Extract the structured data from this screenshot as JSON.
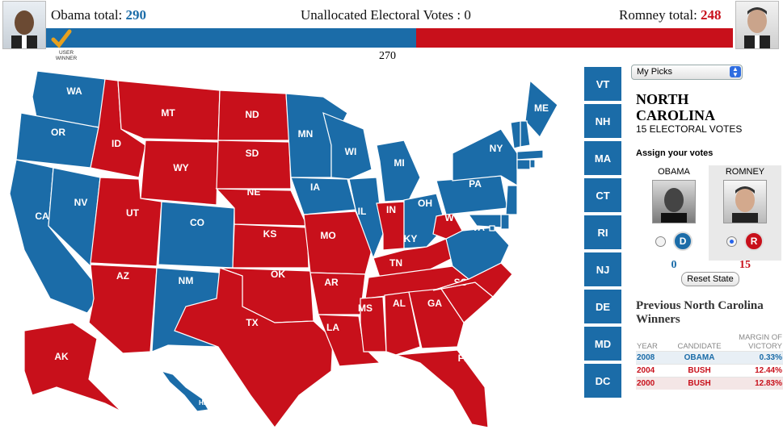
{
  "header": {
    "obama_label": "Obama total:",
    "obama_total": "290",
    "unallocated_label": "Unallocated Electoral Votes :",
    "unallocated_value": "0",
    "romney_label": "Romney total:",
    "romney_total": "248",
    "threshold": "270",
    "user_winner": "USER WINNER",
    "obama_share": 0.539
  },
  "colors": {
    "dem": "#1b6ca8",
    "rep": "#c8101b"
  },
  "map": {
    "states": {
      "WA": "b",
      "OR": "b",
      "CA": "b",
      "NV": "b",
      "ID": "r",
      "MT": "r",
      "WY": "r",
      "UT": "r",
      "AZ": "r",
      "CO": "b",
      "NM": "b",
      "ND": "r",
      "SD": "r",
      "NE": "r",
      "KS": "r",
      "OK": "r",
      "TX": "r",
      "MN": "b",
      "IA": "b",
      "MO": "r",
      "AR": "r",
      "LA": "r",
      "WI": "b",
      "IL": "b",
      "MI": "b",
      "IN": "r",
      "OH": "b",
      "KY": "r",
      "TN": "r",
      "MS": "r",
      "AL": "r",
      "GA": "r",
      "FL": "r",
      "SC": "r",
      "NC": "r",
      "VA": "b",
      "WV": "r",
      "PA": "b",
      "NY": "b",
      "ME": "b",
      "NH": "b",
      "VT": "b",
      "MA": "b",
      "RI": "b",
      "CT": "b",
      "NJ": "b",
      "DE": "b",
      "MD": "b",
      "DC": "b",
      "AK": "r",
      "HI": "b"
    },
    "small_states": [
      "VT",
      "NH",
      "MA",
      "CT",
      "RI",
      "NJ",
      "DE",
      "MD",
      "DC"
    ]
  },
  "panel": {
    "dropdown": "My Picks",
    "state_name_line1": "NORTH",
    "state_name_line2": "CAROLINA",
    "electoral_votes": "15 ELECTORAL VOTES",
    "assign_label": "Assign your votes",
    "obama": {
      "name": "OBAMA",
      "votes": "0",
      "badge": "D"
    },
    "romney": {
      "name": "ROMNEY",
      "votes": "15",
      "badge": "R"
    },
    "reset_label": "Reset State",
    "prev_title": "Previous North Carolina Winners",
    "history": {
      "headers": [
        "YEAR",
        "CANDIDATE",
        "MARGIN OF VICTORY"
      ],
      "rows": [
        {
          "year": "2008",
          "candidate": "OBAMA",
          "margin": "0.33%",
          "party": "D"
        },
        {
          "year": "2004",
          "candidate": "BUSH",
          "margin": "12.44%",
          "party": "R"
        },
        {
          "year": "2000",
          "candidate": "BUSH",
          "margin": "12.83%",
          "party": "R"
        }
      ]
    }
  }
}
